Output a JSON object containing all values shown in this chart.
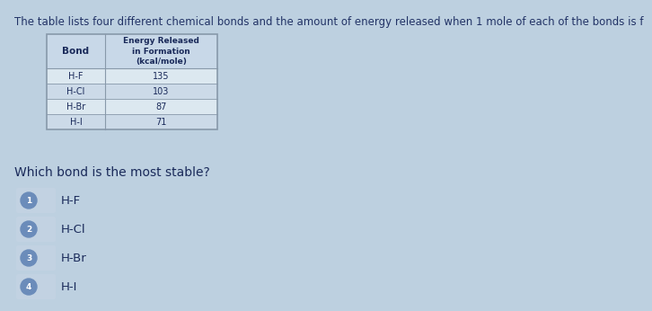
{
  "title": "The table lists four different chemical bonds and the amount of energy released when 1 mole of each of the bonds is f",
  "title_fontsize": 8.5,
  "bg_color": "#bdd0e0",
  "table_header_col1": "Bond",
  "table_header_col2": "Energy Released\nin Formation\n(kcal/mole)",
  "table_rows": [
    [
      "H-F",
      "135"
    ],
    [
      "H-Cl",
      "103"
    ],
    [
      "H-Br",
      "87"
    ],
    [
      "H-I",
      "71"
    ]
  ],
  "question": "Which bond is the most stable?",
  "options": [
    "H-F",
    "H-Cl",
    "H-Br",
    "H-I"
  ],
  "option_numbers": [
    "1",
    "2",
    "3",
    "4"
  ],
  "circle_color": "#6b8cba",
  "option_box_color": "#c2d2e2",
  "text_color": "#1a2a5a",
  "header_bg": "#c8d8e8",
  "row_bg1": "#dce8f0",
  "row_bg2": "#ccdae8",
  "table_border_color": "#8899aa",
  "title_color": "#223366"
}
